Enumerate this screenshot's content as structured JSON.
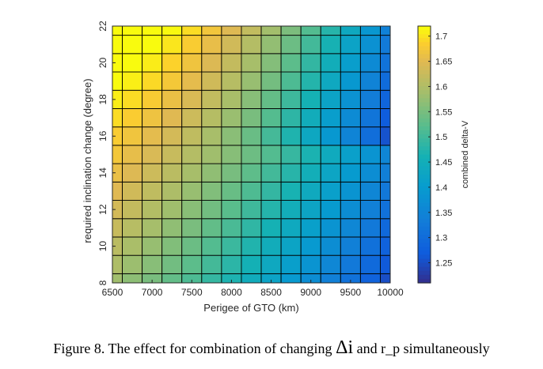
{
  "chart_data": {
    "type": "heatmap",
    "xlabel": "Perigee of GTO (km)",
    "ylabel": "required inclination change (degree)",
    "colorbar_label": "combined delta-V",
    "xlim": [
      6500,
      10000
    ],
    "ylim": [
      8,
      22
    ],
    "x_ticks": [
      "6500",
      "7000",
      "7500",
      "8000",
      "8500",
      "9000",
      "9500",
      "10000"
    ],
    "y_ticks": [
      "8",
      "10",
      "12",
      "14",
      "16",
      "18",
      "20",
      "22"
    ],
    "colorbar_ticks": [
      "1.25",
      "1.3",
      "1.35",
      "1.4",
      "1.45",
      "1.5",
      "1.55",
      "1.6",
      "1.65",
      "1.7"
    ],
    "clim": [
      1.21,
      1.72
    ],
    "colormap": "parula",
    "grid_color": "#000000",
    "x_centers": [
      6500,
      6750,
      7000,
      7250,
      7500,
      7750,
      8000,
      8250,
      8500,
      8750,
      9000,
      9250,
      9500,
      9750,
      10000
    ],
    "y_centers": [
      8,
      9,
      10,
      11,
      12,
      13,
      14,
      15,
      16,
      17,
      18,
      19,
      20,
      21,
      22
    ],
    "z_model": {
      "description_not_rendered": false,
      "base": 1.56,
      "a_inclination": 0.0135,
      "b_perigee": 7.22e-05,
      "c_cross": 1e-06,
      "inclination_ref": 14,
      "perigee_ref": 8000,
      "peak_perigee": 7100
    }
  },
  "caption": {
    "prefix": "Figure 8. The effect for combination of changing ",
    "symbol": "Δi",
    "middle": " and ",
    "var": "r_p",
    "suffix": " simultaneously"
  }
}
